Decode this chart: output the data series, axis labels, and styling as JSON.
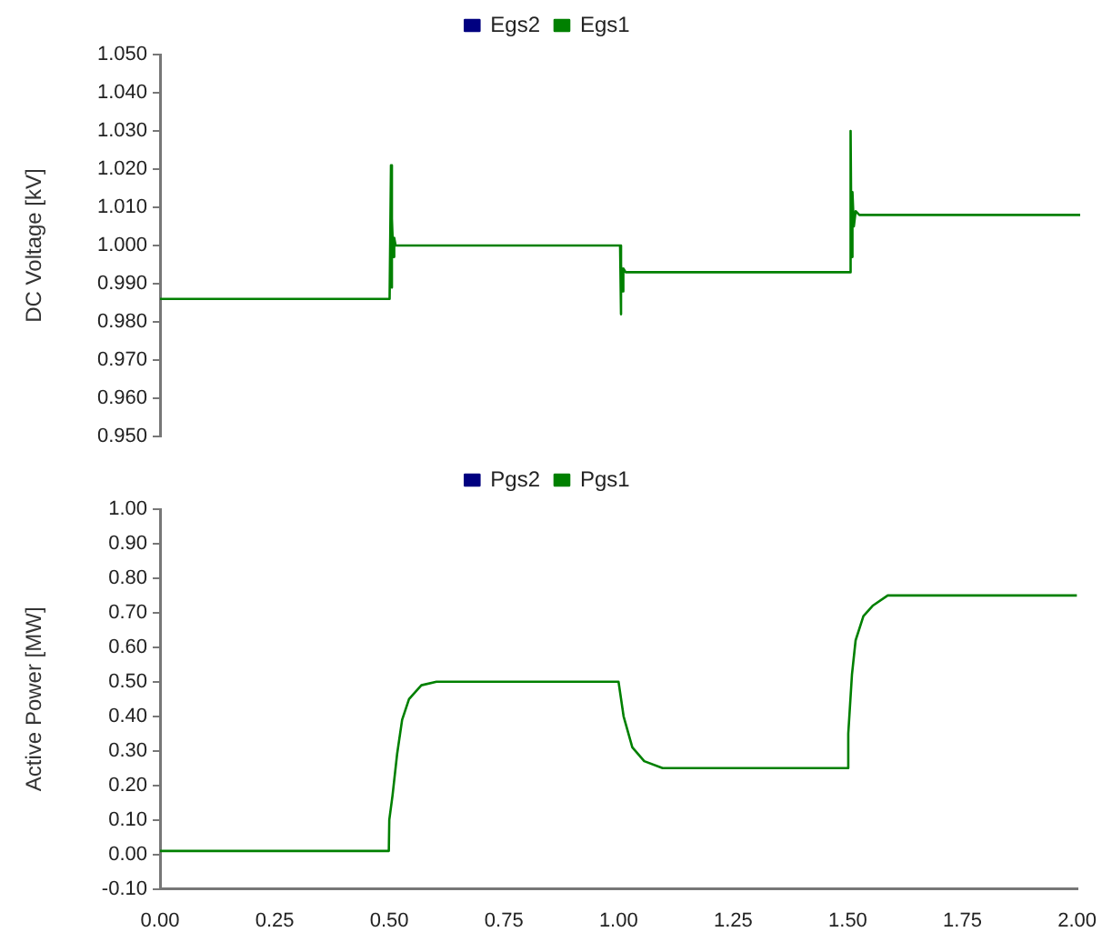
{
  "chart_data": [
    {
      "type": "line",
      "ylabel": "DC Voltage [kV]",
      "xlim": [
        0,
        2
      ],
      "ylim": [
        0.95,
        1.05
      ],
      "yticks": [
        {
          "value": 0.95,
          "label": "0.950"
        },
        {
          "value": 0.96,
          "label": "0.960"
        },
        {
          "value": 0.97,
          "label": "0.970"
        },
        {
          "value": 0.98,
          "label": "0.980"
        },
        {
          "value": 0.99,
          "label": "0.990"
        },
        {
          "value": 1,
          "label": "1.000"
        },
        {
          "value": 1.01,
          "label": "1.010"
        },
        {
          "value": 1.02,
          "label": "1.020"
        },
        {
          "value": 1.03,
          "label": "1.030"
        },
        {
          "value": 1.04,
          "label": "1.040"
        },
        {
          "value": 1.05,
          "label": "1.050"
        }
      ],
      "tick_labels": "y",
      "grid": false,
      "legend": "top",
      "marker": "none",
      "series": [
        {
          "name": "Egs2",
          "color": "#000080"
        },
        {
          "name": "Egs1",
          "color": "#008000",
          "x": [
            0,
            0.499,
            0.5,
            0.502,
            0.503,
            0.505,
            0.507,
            0.509,
            0.512,
            1.0,
            1.001,
            1.003,
            1.005,
            1.007,
            1.012,
            1.5,
            1.501,
            1.503,
            1.505,
            1.508,
            1.512,
            1.52,
            2.0
          ],
          "values": [
            0.986,
            0.986,
            0.986,
            1.021,
            0.989,
            1.007,
            0.997,
            1.002,
            1.0,
            1.0,
            0.982,
            0.995,
            0.988,
            0.994,
            0.993,
            0.993,
            1.03,
            0.997,
            1.014,
            1.005,
            1.009,
            1.008,
            1.008
          ]
        }
      ]
    },
    {
      "type": "line",
      "ylabel": "Active Power [MW]",
      "xlim": [
        0,
        2
      ],
      "xticks": [
        {
          "value": 0,
          "label": "0.00"
        },
        {
          "value": 0.25,
          "label": "0.25"
        },
        {
          "value": 0.5,
          "label": "0.50"
        },
        {
          "value": 0.75,
          "label": "0.75"
        },
        {
          "value": 1,
          "label": "1.00"
        },
        {
          "value": 1.25,
          "label": "1.25"
        },
        {
          "value": 1.5,
          "label": "1.50"
        },
        {
          "value": 1.75,
          "label": "1.75"
        },
        {
          "value": 2,
          "label": "2.00"
        }
      ],
      "ylim": [
        -0.1,
        1.0
      ],
      "yticks": [
        {
          "value": -0.1,
          "label": "-0.10"
        },
        {
          "value": 0,
          "label": "0.00"
        },
        {
          "value": 0.1,
          "label": "0.10"
        },
        {
          "value": 0.2,
          "label": "0.20"
        },
        {
          "value": 0.3,
          "label": "0.30"
        },
        {
          "value": 0.4,
          "label": "0.40"
        },
        {
          "value": 0.5,
          "label": "0.50"
        },
        {
          "value": 0.6,
          "label": "0.60"
        },
        {
          "value": 0.7,
          "label": "0.70"
        },
        {
          "value": 0.8,
          "label": "0.80"
        },
        {
          "value": 0.9,
          "label": "0.90"
        },
        {
          "value": 1,
          "label": "1.00"
        }
      ],
      "grid": false,
      "legend": "top",
      "marker": "none",
      "series": [
        {
          "name": "Pgs2",
          "color": "#000080"
        },
        {
          "name": "Pgs1",
          "color": "#008000",
          "x": [
            0,
            0.499,
            0.5,
            0.507,
            0.517,
            0.528,
            0.543,
            0.57,
            0.603,
            1.0,
            1.011,
            1.03,
            1.056,
            1.096,
            1.115,
            1.5,
            1.501,
            1.509,
            1.517,
            1.534,
            1.554,
            1.587,
            2.0
          ],
          "values": [
            0.01,
            0.01,
            0.1,
            0.17,
            0.29,
            0.39,
            0.45,
            0.49,
            0.5,
            0.5,
            0.4,
            0.31,
            0.27,
            0.25,
            0.25,
            0.25,
            0.35,
            0.52,
            0.62,
            0.69,
            0.72,
            0.75,
            0.75
          ]
        }
      ]
    }
  ]
}
